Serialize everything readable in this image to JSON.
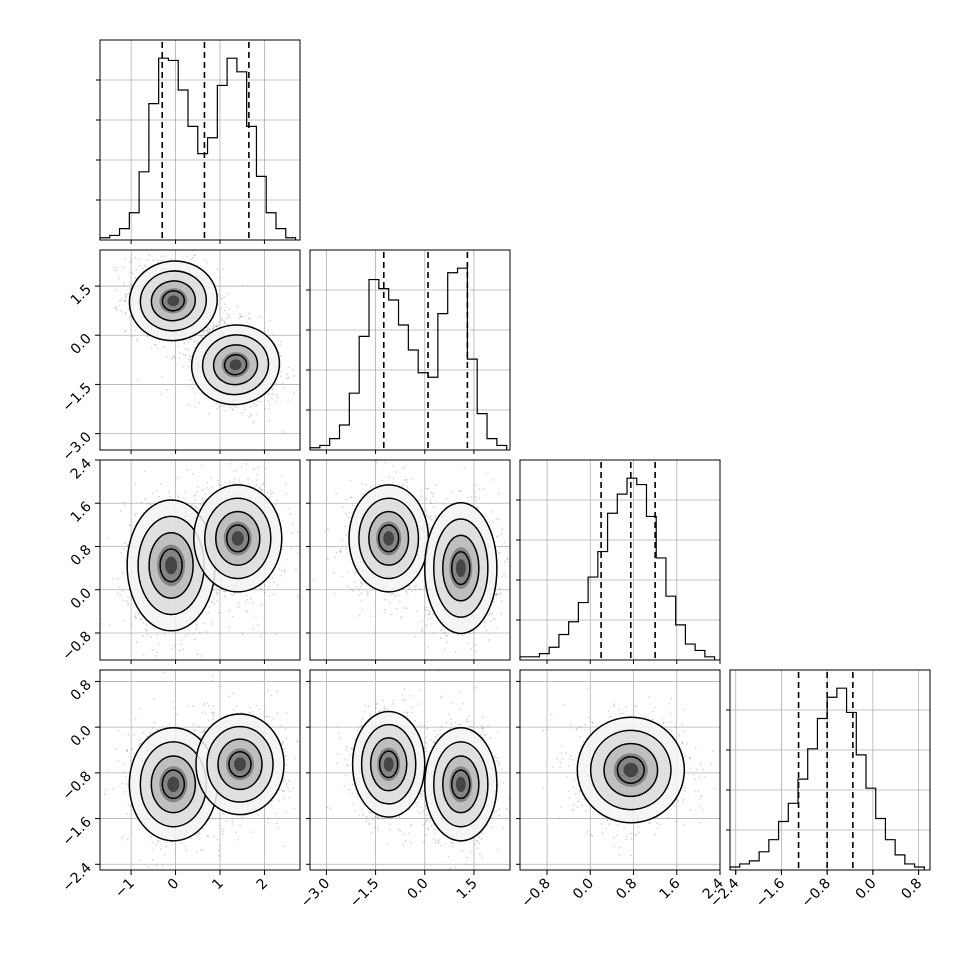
{
  "chart_data": {
    "type": "corner",
    "title": "",
    "parameters": [
      "",
      "",
      "",
      ""
    ],
    "grid": true,
    "quantile_lines": "dashed",
    "axes": [
      {
        "range": [
          -1.7,
          2.8
        ],
        "ticks": [
          -1,
          0,
          1,
          2
        ],
        "tick_labels": [
          "−1",
          "0",
          "1",
          "2"
        ]
      },
      {
        "range": [
          -3.5,
          2.6
        ],
        "ticks": [
          -3.0,
          -1.5,
          0.0,
          1.5
        ],
        "tick_labels": [
          "−3.0",
          "−1.5",
          "0.0",
          "1.5"
        ]
      },
      {
        "range": [
          -1.3,
          2.4
        ],
        "ticks": [
          -0.8,
          0.0,
          0.8,
          1.6,
          2.4
        ],
        "tick_labels": [
          "−0.8",
          "0.0",
          "0.8",
          "1.6",
          "2.4"
        ]
      },
      {
        "range": [
          -2.5,
          1.0
        ],
        "ticks": [
          -2.4,
          -1.6,
          -0.8,
          0.0,
          0.8
        ],
        "tick_labels": [
          "−2.4",
          "−1.6",
          "−0.8",
          "0.0",
          "0.8"
        ]
      }
    ],
    "histograms": [
      {
        "parameter": 1,
        "bin_edges": [
          -1.7,
          -1.48,
          -1.26,
          -1.04,
          -0.82,
          -0.6,
          -0.38,
          -0.16,
          0.06,
          0.28,
          0.5,
          0.72,
          0.94,
          1.16,
          1.38,
          1.6,
          1.82,
          2.04,
          2.26,
          2.48,
          2.7
        ],
        "counts": [
          1,
          2,
          5,
          12,
          30,
          60,
          80,
          79,
          66,
          50,
          38,
          45,
          68,
          80,
          74,
          50,
          28,
          12,
          5,
          1
        ],
        "quantiles": [
          -0.3,
          0.65,
          1.65
        ]
      },
      {
        "parameter": 2,
        "bin_edges": [
          -3.5,
          -3.2,
          -2.9,
          -2.6,
          -2.3,
          -2.0,
          -1.7,
          -1.4,
          -1.1,
          -0.8,
          -0.5,
          -0.2,
          0.1,
          0.4,
          0.7,
          1.0,
          1.3,
          1.6,
          1.9,
          2.2,
          2.5
        ],
        "counts": [
          1,
          2,
          5,
          11,
          25,
          50,
          75,
          71,
          66,
          55,
          44,
          34,
          32,
          60,
          78,
          80,
          40,
          16,
          5,
          2
        ],
        "quantiles": [
          -1.25,
          0.1,
          1.3
        ]
      },
      {
        "parameter": 3,
        "bin_edges": [
          -1.3,
          -1.12,
          -0.94,
          -0.76,
          -0.58,
          -0.4,
          -0.22,
          -0.04,
          0.14,
          0.32,
          0.5,
          0.68,
          0.86,
          1.04,
          1.22,
          1.4,
          1.58,
          1.76,
          1.94,
          2.12,
          2.3
        ],
        "counts": [
          1,
          1,
          2,
          4,
          8,
          12,
          18,
          26,
          34,
          46,
          52,
          57,
          55,
          45,
          32,
          20,
          11,
          5,
          3,
          1
        ],
        "quantiles": [
          0.2,
          0.75,
          1.2
        ]
      },
      {
        "parameter": 4,
        "bin_edges": [
          -2.5,
          -2.33,
          -2.16,
          -1.99,
          -1.82,
          -1.65,
          -1.48,
          -1.31,
          -1.14,
          -0.97,
          -0.8,
          -0.63,
          -0.46,
          -0.29,
          -0.12,
          0.05,
          0.22,
          0.39,
          0.56,
          0.73,
          0.9
        ],
        "counts": [
          1,
          2,
          3,
          6,
          10,
          16,
          22,
          30,
          40,
          50,
          57,
          60,
          52,
          38,
          27,
          17,
          10,
          5,
          2,
          1
        ],
        "quantiles": [
          -1.3,
          -0.8,
          -0.35
        ]
      }
    ],
    "scatter_2d": [
      {
        "x_param": 1,
        "y_param": 2,
        "modes": [
          {
            "x": -0.05,
            "y": 1.05,
            "sx": 0.45,
            "sy": 0.55,
            "rho": -0.2
          },
          {
            "x": 1.35,
            "y": -0.9,
            "sx": 0.45,
            "sy": 0.55,
            "rho": -0.2
          }
        ]
      },
      {
        "x_param": 1,
        "y_param": 3,
        "modes": [
          {
            "x": -0.1,
            "y": 0.45,
            "sx": 0.45,
            "sy": 0.55,
            "rho": 0.0
          },
          {
            "x": 1.4,
            "y": 0.95,
            "sx": 0.45,
            "sy": 0.45,
            "rho": 0.0
          }
        ]
      },
      {
        "x_param": 2,
        "y_param": 3,
        "modes": [
          {
            "x": -1.1,
            "y": 0.95,
            "sx": 0.55,
            "sy": 0.45,
            "rho": 0.0
          },
          {
            "x": 1.1,
            "y": 0.4,
            "sx": 0.5,
            "sy": 0.55,
            "rho": 0.0
          }
        ]
      },
      {
        "x_param": 1,
        "y_param": 4,
        "modes": [
          {
            "x": -0.05,
            "y": -1.0,
            "sx": 0.45,
            "sy": 0.45,
            "rho": 0.0
          },
          {
            "x": 1.45,
            "y": -0.65,
            "sx": 0.45,
            "sy": 0.4,
            "rho": 0.0
          }
        ]
      },
      {
        "x_param": 2,
        "y_param": 4,
        "modes": [
          {
            "x": -1.1,
            "y": -0.65,
            "sx": 0.5,
            "sy": 0.42,
            "rho": 0.0
          },
          {
            "x": 1.1,
            "y": -1.0,
            "sx": 0.5,
            "sy": 0.45,
            "rho": 0.0
          }
        ]
      },
      {
        "x_param": 3,
        "y_param": 4,
        "modes": [
          {
            "x": 0.75,
            "y": -0.75,
            "sx": 0.45,
            "sy": 0.42,
            "rho": 0.0
          }
        ]
      }
    ],
    "contour_levels_sigma": [
      0.5,
      1.0,
      1.5,
      2.0
    ]
  }
}
